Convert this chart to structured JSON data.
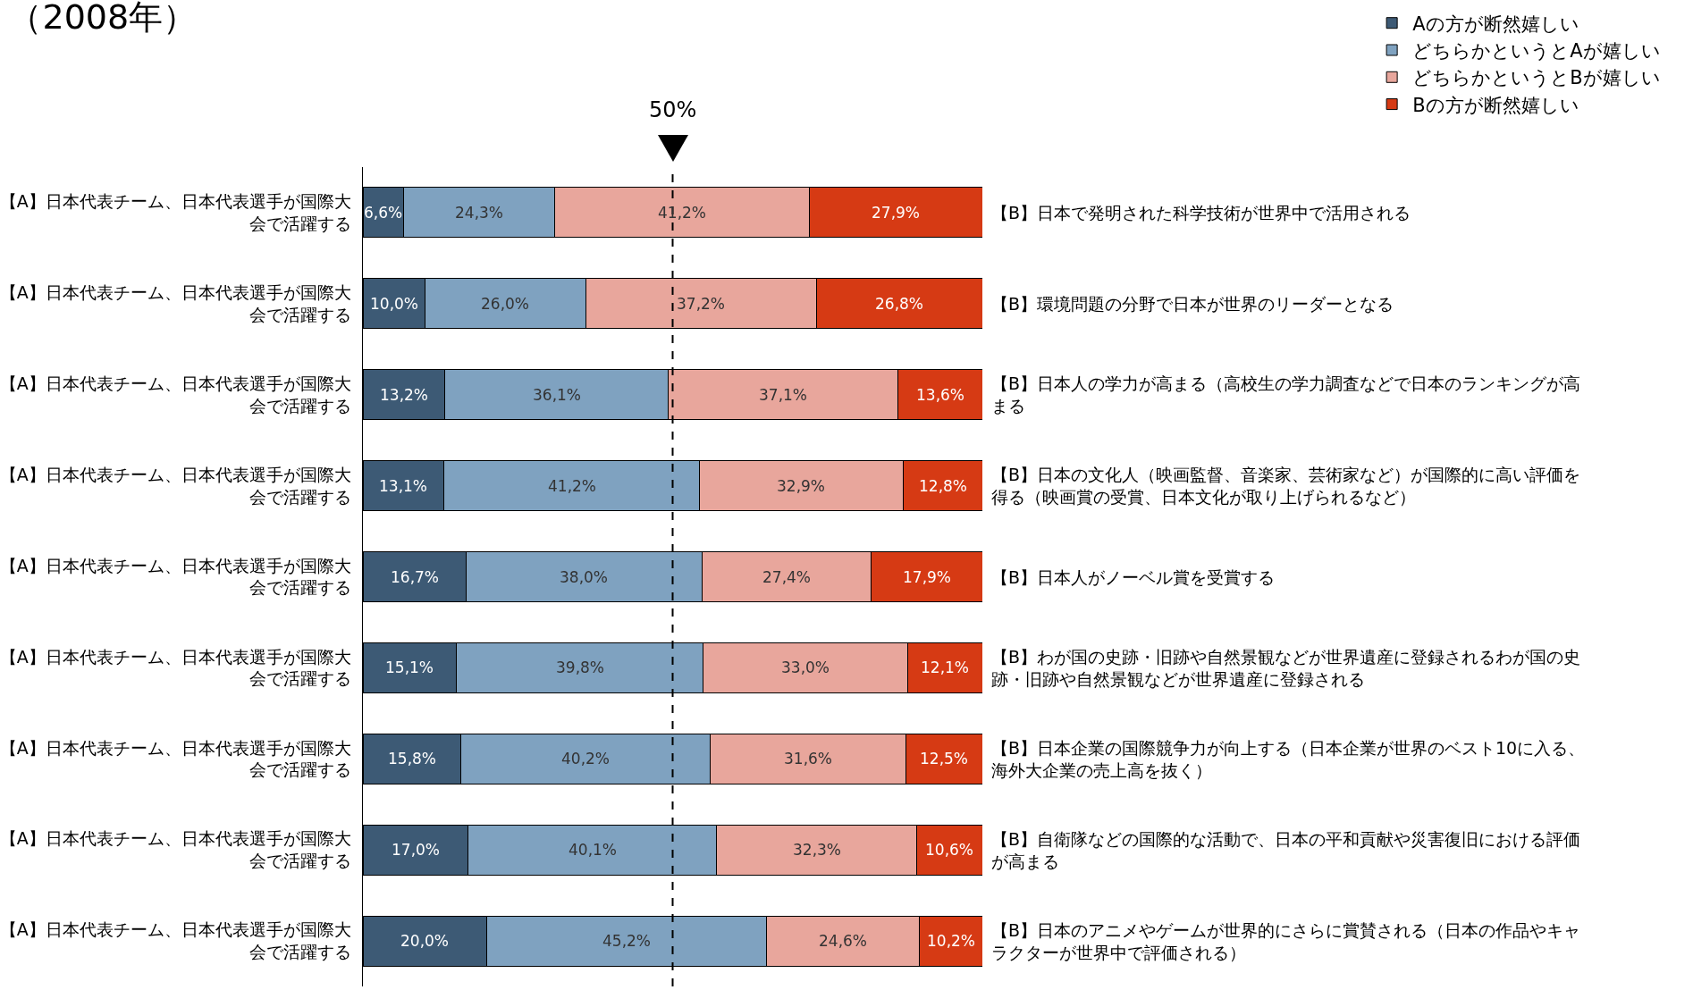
{
  "chart_data": {
    "type": "bar",
    "title": "（2008年）",
    "orientation": "horizontal",
    "stacked": true,
    "legend": "top right",
    "tick_labels": "y",
    "xlim": [
      0,
      100
    ],
    "categories": [
      "【A】日本代表チーム、日本代表選手が国際大会で活躍する",
      "【A】日本代表チーム、日本代表選手が国際大会で活躍する",
      "【A】日本代表チーム、日本代表選手が国際大会で活躍する",
      "【A】日本代表チーム、日本代表選手が国際大会で活躍する",
      "【A】日本代表チーム、日本代表選手が国際大会で活躍する",
      "【A】日本代表チーム、日本代表選手が国際大会で活躍する",
      "【A】日本代表チーム、日本代表選手が国際大会で活躍する",
      "【A】日本代表チーム、日本代表選手が国際大会で活躍する",
      "【A】日本代表チーム、日本代表選手が国際大会で活躍する"
    ],
    "series": [
      {
        "name": "Aの方が断然嬉しい",
        "color": "#3d5a75",
        "values": [
          6.6,
          10.0,
          13.2,
          13.1,
          16.7,
          15.1,
          15.8,
          17.0,
          20.0
        ],
        "value_labels": [
          "6,6%",
          "10,0%",
          "13,2%",
          "13,1%",
          "16,7%",
          "15,1%",
          "15,8%",
          "17,0%",
          "20,0%"
        ]
      },
      {
        "name": "どちらかというとAが嬉しい",
        "color": "#7fa2c0",
        "values": [
          24.3,
          26.0,
          36.1,
          41.2,
          38.0,
          39.8,
          40.2,
          40.1,
          45.2
        ],
        "value_labels": [
          "24,3%",
          "26,0%",
          "36,1%",
          "41,2%",
          "38,0%",
          "39,8%",
          "40,2%",
          "40,1%",
          "45,2%"
        ]
      },
      {
        "name": "どちらかというとBが嬉しい",
        "color": "#e8a69c",
        "values": [
          41.2,
          37.2,
          37.1,
          32.9,
          27.4,
          33.0,
          31.6,
          32.3,
          24.6
        ],
        "value_labels": [
          "41,2%",
          "37,2%",
          "37,1%",
          "32,9%",
          "27,4%",
          "33,0%",
          "31,6%",
          "32,3%",
          "24,6%"
        ]
      },
      {
        "name": "Bの方が断然嬉しい",
        "color": "#d63a14",
        "values": [
          27.9,
          26.8,
          13.6,
          12.8,
          17.9,
          12.1,
          12.5,
          10.6,
          10.2
        ],
        "value_labels": [
          "27,9%",
          "26,8%",
          "13,6%",
          "12,8%",
          "17,9%",
          "12,1%",
          "12,5%",
          "10,6%",
          "10,2%"
        ]
      }
    ],
    "ref_lines": [
      {
        "axis": "x",
        "value": 50,
        "label": "50%",
        "line_style": "dashed",
        "color": "#000000"
      }
    ],
    "annotations": [
      "【B】日本で発明された科学技術が世界中で活用される",
      "【B】環境問題の分野で日本が世界のリーダーとなる",
      "【B】日本人の学力が高まる（高校生の学力調査などで日本のランキングが高まる",
      "【B】日本の文化人（映画監督、音楽家、芸術家など）が国際的に高い評価を得る（映画賞の受賞、日本文化が取り上げられるなど）",
      "【B】日本人がノーベル賞を受賞する",
      "【B】わが国の史跡・旧跡や自然景観などが世界遺産に登録されるわが国の史跡・旧跡や自然景観などが世界遺産に登録される",
      "【B】日本企業の国際競争力が向上する（日本企業が世界のベスト10に入る、海外大企業の売上高を抜く）",
      "【B】自衛隊などの国際的な活動で、日本の平和貢献や災害復旧における評価が高まる",
      "【B】日本のアニメやゲームが世界的にさらに賞賛される（日本の作品やキャラクターが世界中で評価される）"
    ]
  }
}
